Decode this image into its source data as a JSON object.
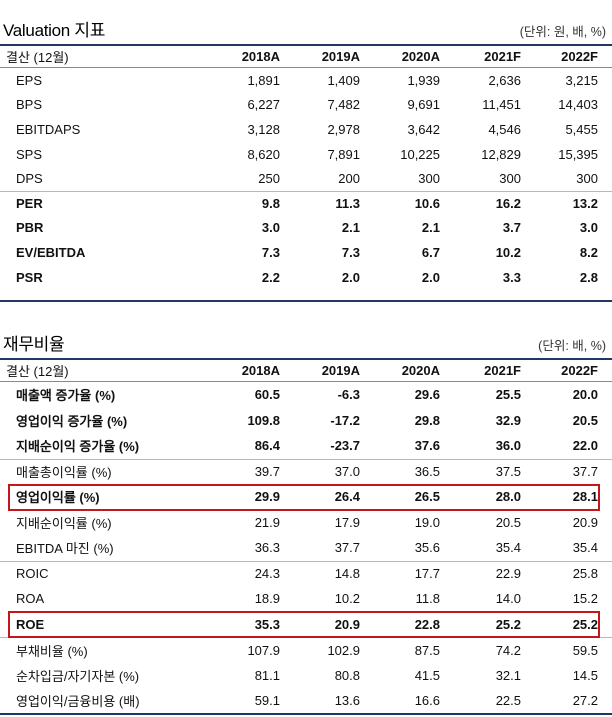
{
  "valuation": {
    "title": "Valuation 지표",
    "unit": "(단위: 원, 배, %)",
    "columns": [
      "결산 (12월)",
      "2018A",
      "2019A",
      "2020A",
      "2021F",
      "2022F"
    ],
    "rows": [
      {
        "label": "EPS",
        "values": [
          "1,891",
          "1,409",
          "1,939",
          "2,636",
          "3,215"
        ]
      },
      {
        "label": "BPS",
        "values": [
          "6,227",
          "7,482",
          "9,691",
          "11,451",
          "14,403"
        ]
      },
      {
        "label": "EBITDAPS",
        "values": [
          "3,128",
          "2,978",
          "3,642",
          "4,546",
          "5,455"
        ]
      },
      {
        "label": "SPS",
        "values": [
          "8,620",
          "7,891",
          "10,225",
          "12,829",
          "15,395"
        ]
      },
      {
        "label": "DPS",
        "values": [
          "250",
          "200",
          "300",
          "300",
          "300"
        ]
      },
      {
        "label": "PER",
        "values": [
          "9.8",
          "11.3",
          "10.6",
          "16.2",
          "13.2"
        ]
      },
      {
        "label": "PBR",
        "values": [
          "3.0",
          "2.1",
          "2.1",
          "3.7",
          "3.0"
        ]
      },
      {
        "label": "EV/EBITDA",
        "values": [
          "7.3",
          "7.3",
          "6.7",
          "10.2",
          "8.2"
        ]
      },
      {
        "label": "PSR",
        "values": [
          "2.2",
          "2.0",
          "2.0",
          "3.3",
          "2.8"
        ]
      }
    ]
  },
  "ratios": {
    "title": "재무비율",
    "unit": "(단위: 배, %)",
    "columns": [
      "결산 (12월)",
      "2018A",
      "2019A",
      "2020A",
      "2021F",
      "2022F"
    ],
    "rows": [
      {
        "label": "매출액 증가율 (%)",
        "values": [
          "60.5",
          "-6.3",
          "29.6",
          "25.5",
          "20.0"
        ]
      },
      {
        "label": "영업이익 증가율 (%)",
        "values": [
          "109.8",
          "-17.2",
          "29.8",
          "32.9",
          "20.5"
        ]
      },
      {
        "label": "지배순이익 증가율 (%)",
        "values": [
          "86.4",
          "-23.7",
          "37.6",
          "36.0",
          "22.0"
        ]
      },
      {
        "label": "매출총이익률 (%)",
        "values": [
          "39.7",
          "37.0",
          "36.5",
          "37.5",
          "37.7"
        ]
      },
      {
        "label": "영업이익률 (%)",
        "values": [
          "29.9",
          "26.4",
          "26.5",
          "28.0",
          "28.1"
        ]
      },
      {
        "label": "지배순이익률 (%)",
        "values": [
          "21.9",
          "17.9",
          "19.0",
          "20.5",
          "20.9"
        ]
      },
      {
        "label": "EBITDA 마진 (%)",
        "values": [
          "36.3",
          "37.7",
          "35.6",
          "35.4",
          "35.4"
        ]
      },
      {
        "label": "ROIC",
        "values": [
          "24.3",
          "14.8",
          "17.7",
          "22.9",
          "25.8"
        ]
      },
      {
        "label": "ROA",
        "values": [
          "18.9",
          "10.2",
          "11.8",
          "14.0",
          "15.2"
        ]
      },
      {
        "label": "ROE",
        "values": [
          "35.3",
          "20.9",
          "22.8",
          "25.2",
          "25.2"
        ]
      },
      {
        "label": "부채비율 (%)",
        "values": [
          "107.9",
          "102.9",
          "87.5",
          "74.2",
          "59.5"
        ]
      },
      {
        "label": "순차입금/자기자본 (%)",
        "values": [
          "81.1",
          "80.8",
          "41.5",
          "32.1",
          "14.5"
        ]
      },
      {
        "label": "영업이익/금융비용 (배)",
        "values": [
          "59.1",
          "13.6",
          "16.6",
          "22.5",
          "27.2"
        ]
      }
    ]
  }
}
